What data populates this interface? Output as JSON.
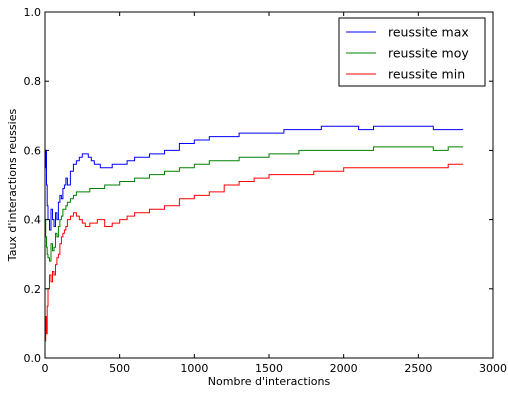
{
  "chart_data": {
    "type": "line",
    "xlabel": "Nombre d'interactions",
    "ylabel": "Taux d'interactions reussies",
    "xlim": [
      0,
      3000
    ],
    "ylim": [
      0,
      1.0
    ],
    "xticks": [
      0,
      500,
      1000,
      1500,
      2000,
      2500,
      3000
    ],
    "yticks": [
      0.0,
      0.2,
      0.4,
      0.6,
      0.8,
      1.0
    ],
    "grid": false,
    "legend_position": "top-right",
    "series": [
      {
        "name": "reussite max",
        "color": "#0000ff",
        "x": [
          0,
          5,
          10,
          15,
          20,
          30,
          40,
          50,
          60,
          70,
          80,
          90,
          100,
          110,
          120,
          130,
          140,
          150,
          170,
          190,
          210,
          230,
          250,
          270,
          290,
          310,
          330,
          350,
          370,
          400,
          450,
          500,
          550,
          600,
          700,
          800,
          900,
          1000,
          1100,
          1200,
          1300,
          1400,
          1500,
          1600,
          1700,
          1800,
          1850,
          1900,
          2000,
          2100,
          2200,
          2300,
          2400,
          2500,
          2600,
          2700,
          2800
        ],
        "y": [
          0.55,
          0.6,
          0.5,
          0.44,
          0.4,
          0.37,
          0.43,
          0.4,
          0.38,
          0.42,
          0.4,
          0.45,
          0.47,
          0.46,
          0.49,
          0.5,
          0.52,
          0.5,
          0.54,
          0.56,
          0.57,
          0.58,
          0.59,
          0.59,
          0.58,
          0.57,
          0.56,
          0.56,
          0.55,
          0.55,
          0.56,
          0.56,
          0.57,
          0.58,
          0.59,
          0.6,
          0.62,
          0.63,
          0.64,
          0.64,
          0.65,
          0.65,
          0.65,
          0.66,
          0.66,
          0.66,
          0.67,
          0.67,
          0.67,
          0.66,
          0.67,
          0.67,
          0.67,
          0.67,
          0.66,
          0.66,
          0.66
        ]
      },
      {
        "name": "reussite moy",
        "color": "#008000",
        "x": [
          0,
          5,
          10,
          15,
          20,
          30,
          40,
          50,
          60,
          70,
          80,
          90,
          100,
          110,
          120,
          130,
          140,
          150,
          170,
          190,
          210,
          250,
          300,
          400,
          500,
          600,
          700,
          800,
          900,
          1000,
          1100,
          1200,
          1300,
          1400,
          1500,
          1600,
          1700,
          1800,
          1900,
          2000,
          2100,
          2200,
          2300,
          2400,
          2500,
          2600,
          2700,
          2800
        ],
        "y": [
          0.4,
          0.35,
          0.32,
          0.3,
          0.29,
          0.28,
          0.33,
          0.31,
          0.32,
          0.36,
          0.35,
          0.38,
          0.4,
          0.41,
          0.43,
          0.43,
          0.44,
          0.45,
          0.46,
          0.47,
          0.48,
          0.48,
          0.49,
          0.5,
          0.51,
          0.52,
          0.53,
          0.54,
          0.55,
          0.56,
          0.57,
          0.57,
          0.58,
          0.58,
          0.59,
          0.59,
          0.6,
          0.6,
          0.6,
          0.6,
          0.6,
          0.61,
          0.61,
          0.61,
          0.61,
          0.6,
          0.61,
          0.61
        ]
      },
      {
        "name": "reussite min",
        "color": "#ff0000",
        "x": [
          0,
          5,
          10,
          15,
          20,
          30,
          40,
          50,
          60,
          70,
          80,
          90,
          100,
          110,
          120,
          130,
          140,
          150,
          170,
          190,
          210,
          230,
          250,
          270,
          300,
          350,
          400,
          450,
          500,
          550,
          600,
          700,
          800,
          900,
          1000,
          1100,
          1200,
          1300,
          1400,
          1500,
          1600,
          1700,
          1800,
          1900,
          2000,
          2100,
          2200,
          2300,
          2400,
          2500,
          2600,
          2700,
          2800
        ],
        "y": [
          0.05,
          0.12,
          0.07,
          0.15,
          0.2,
          0.24,
          0.22,
          0.25,
          0.24,
          0.27,
          0.29,
          0.3,
          0.33,
          0.35,
          0.36,
          0.37,
          0.38,
          0.4,
          0.41,
          0.42,
          0.41,
          0.4,
          0.39,
          0.38,
          0.39,
          0.4,
          0.38,
          0.39,
          0.4,
          0.41,
          0.42,
          0.43,
          0.44,
          0.46,
          0.47,
          0.48,
          0.5,
          0.51,
          0.52,
          0.53,
          0.53,
          0.53,
          0.54,
          0.54,
          0.55,
          0.55,
          0.55,
          0.55,
          0.55,
          0.55,
          0.55,
          0.56,
          0.56
        ]
      }
    ]
  }
}
